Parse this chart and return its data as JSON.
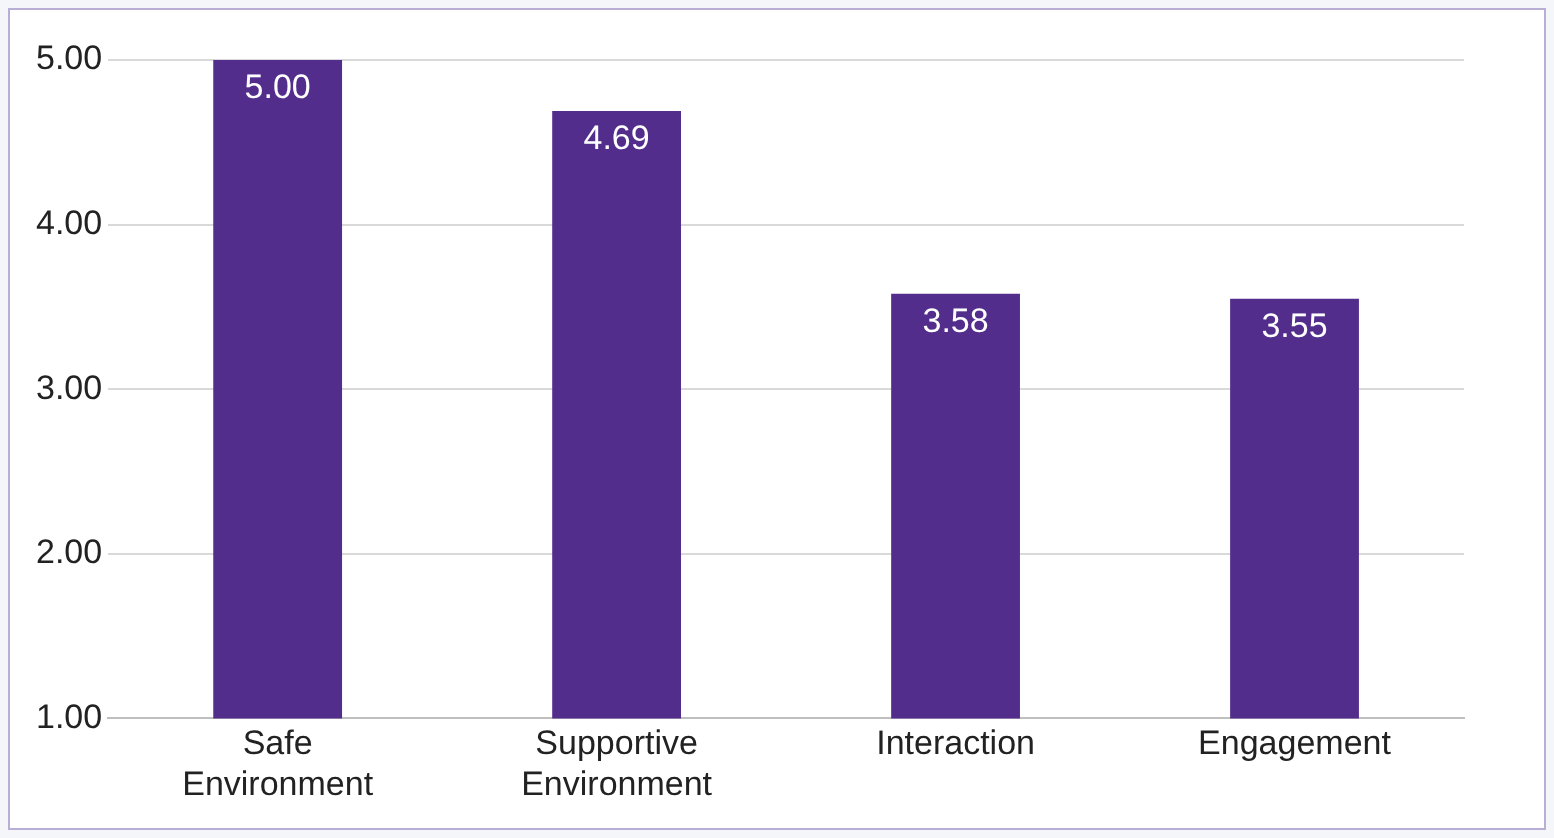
{
  "chart_data": {
    "type": "bar",
    "categories": [
      "Safe Environment",
      "Supportive Environment",
      "Interaction",
      "Engagement"
    ],
    "values": [
      5.0,
      4.69,
      3.58,
      3.55
    ],
    "color": "#532d8c",
    "ylim": [
      1,
      5
    ],
    "yticks": [
      {
        "value": 1,
        "label": "1.00"
      },
      {
        "value": 2,
        "label": "2.00"
      },
      {
        "value": 3,
        "label": "3.00"
      },
      {
        "value": 4,
        "label": "4.00"
      },
      {
        "value": 5,
        "label": "5.00"
      }
    ],
    "grid": "y",
    "legend": false,
    "value_labels": [
      "5.00",
      "4.69",
      "3.58",
      "3.55"
    ]
  }
}
